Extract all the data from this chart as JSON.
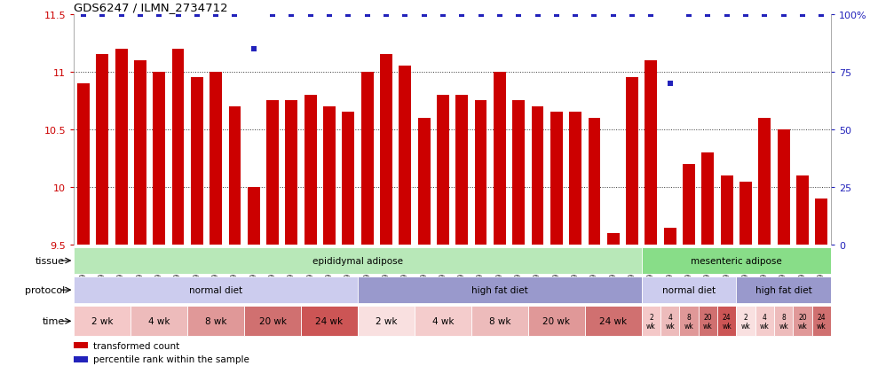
{
  "title": "GDS6247 / ILMN_2734712",
  "samples": [
    "GSM971546",
    "GSM971547",
    "GSM971548",
    "GSM971549",
    "GSM971550",
    "GSM971551",
    "GSM971552",
    "GSM971553",
    "GSM971554",
    "GSM971555",
    "GSM971556",
    "GSM971557",
    "GSM971558",
    "GSM971559",
    "GSM971560",
    "GSM971561",
    "GSM971562",
    "GSM971563",
    "GSM971564",
    "GSM971565",
    "GSM971566",
    "GSM971567",
    "GSM971568",
    "GSM971569",
    "GSM971570",
    "GSM971571",
    "GSM971572",
    "GSM971573",
    "GSM971574",
    "GSM971575",
    "GSM971576",
    "GSM971577",
    "GSM971578",
    "GSM971579",
    "GSM971580",
    "GSM971581",
    "GSM971582",
    "GSM971583",
    "GSM971584",
    "GSM971585"
  ],
  "bar_values": [
    10.9,
    11.15,
    11.2,
    11.1,
    11.0,
    11.2,
    10.95,
    11.0,
    10.7,
    10.0,
    10.75,
    10.75,
    10.8,
    10.7,
    10.65,
    11.0,
    11.15,
    11.05,
    10.6,
    10.8,
    10.8,
    10.75,
    11.0,
    10.75,
    10.7,
    10.65,
    10.65,
    10.6,
    9.6,
    10.95,
    11.1,
    9.65,
    10.2,
    10.3,
    10.1,
    10.05,
    10.6,
    10.5,
    10.1,
    9.9
  ],
  "percentile_values": [
    100,
    100,
    100,
    100,
    100,
    100,
    100,
    100,
    100,
    85,
    100,
    100,
    100,
    100,
    100,
    100,
    100,
    100,
    100,
    100,
    100,
    100,
    100,
    100,
    100,
    100,
    100,
    100,
    100,
    100,
    100,
    70,
    100,
    100,
    100,
    100,
    100,
    100,
    100,
    100
  ],
  "ylim_left": [
    9.5,
    11.5
  ],
  "ylim_right": [
    0,
    100
  ],
  "yticks_left": [
    9.5,
    10.0,
    10.5,
    11.0,
    11.5
  ],
  "ytick_labels_left": [
    "9.5",
    "10",
    "10.5",
    "11",
    "11.5"
  ],
  "yticks_right": [
    0,
    25,
    50,
    75,
    100
  ],
  "ytick_labels_right": [
    "0",
    "25",
    "50",
    "75",
    "100%"
  ],
  "grid_levels": [
    10.0,
    10.5,
    11.0
  ],
  "bar_color": "#cc0000",
  "dot_color": "#2222bb",
  "grid_color": "#333333",
  "left_tick_color": "#cc0000",
  "right_tick_color": "#2222bb",
  "bg_color": "#ffffff",
  "tissue_segments": [
    {
      "start": 0,
      "end": 30,
      "label": "epididymal adipose",
      "color": "#b8e8b8"
    },
    {
      "start": 30,
      "end": 40,
      "label": "mesenteric adipose",
      "color": "#88dd88"
    }
  ],
  "protocol_segments": [
    {
      "start": 0,
      "end": 15,
      "label": "normal diet",
      "color": "#ccccee"
    },
    {
      "start": 15,
      "end": 30,
      "label": "high fat diet",
      "color": "#9999cc"
    },
    {
      "start": 30,
      "end": 35,
      "label": "normal diet",
      "color": "#ccccee"
    },
    {
      "start": 35,
      "end": 40,
      "label": "high fat diet",
      "color": "#9999cc"
    }
  ],
  "time_segments": [
    {
      "start": 0,
      "end": 3,
      "label": "2 wk",
      "color": "#f4c8c8"
    },
    {
      "start": 3,
      "end": 6,
      "label": "4 wk",
      "color": "#edbbbb"
    },
    {
      "start": 6,
      "end": 9,
      "label": "8 wk",
      "color": "#e09898"
    },
    {
      "start": 9,
      "end": 12,
      "label": "20 wk",
      "color": "#d07070"
    },
    {
      "start": 12,
      "end": 15,
      "label": "24 wk",
      "color": "#cc5555"
    },
    {
      "start": 15,
      "end": 18,
      "label": "2 wk",
      "color": "#f9e0e0"
    },
    {
      "start": 18,
      "end": 21,
      "label": "4 wk",
      "color": "#f4cccc"
    },
    {
      "start": 21,
      "end": 24,
      "label": "8 wk",
      "color": "#edbbbb"
    },
    {
      "start": 24,
      "end": 27,
      "label": "20 wk",
      "color": "#e09898"
    },
    {
      "start": 27,
      "end": 30,
      "label": "24 wk",
      "color": "#d07070"
    },
    {
      "start": 30,
      "end": 31,
      "label": "2\nwk",
      "color": "#f4c8c8"
    },
    {
      "start": 31,
      "end": 32,
      "label": "4\nwk",
      "color": "#edbbbb"
    },
    {
      "start": 32,
      "end": 33,
      "label": "8\nwk",
      "color": "#e09898"
    },
    {
      "start": 33,
      "end": 34,
      "label": "20\nwk",
      "color": "#d07070"
    },
    {
      "start": 34,
      "end": 35,
      "label": "24\nwk",
      "color": "#cc5555"
    },
    {
      "start": 35,
      "end": 36,
      "label": "2\nwk",
      "color": "#f9e0e0"
    },
    {
      "start": 36,
      "end": 37,
      "label": "4\nwk",
      "color": "#f4cccc"
    },
    {
      "start": 37,
      "end": 38,
      "label": "8\nwk",
      "color": "#edbbbb"
    },
    {
      "start": 38,
      "end": 39,
      "label": "20\nwk",
      "color": "#e09898"
    },
    {
      "start": 39,
      "end": 40,
      "label": "24\nwk",
      "color": "#d07070"
    }
  ],
  "row_label_color": "#000000",
  "row_labels": [
    "tissue",
    "protocol",
    "time"
  ],
  "legend_items": [
    {
      "color": "#cc0000",
      "label": "transformed count"
    },
    {
      "color": "#2222bb",
      "label": "percentile rank within the sample"
    }
  ]
}
